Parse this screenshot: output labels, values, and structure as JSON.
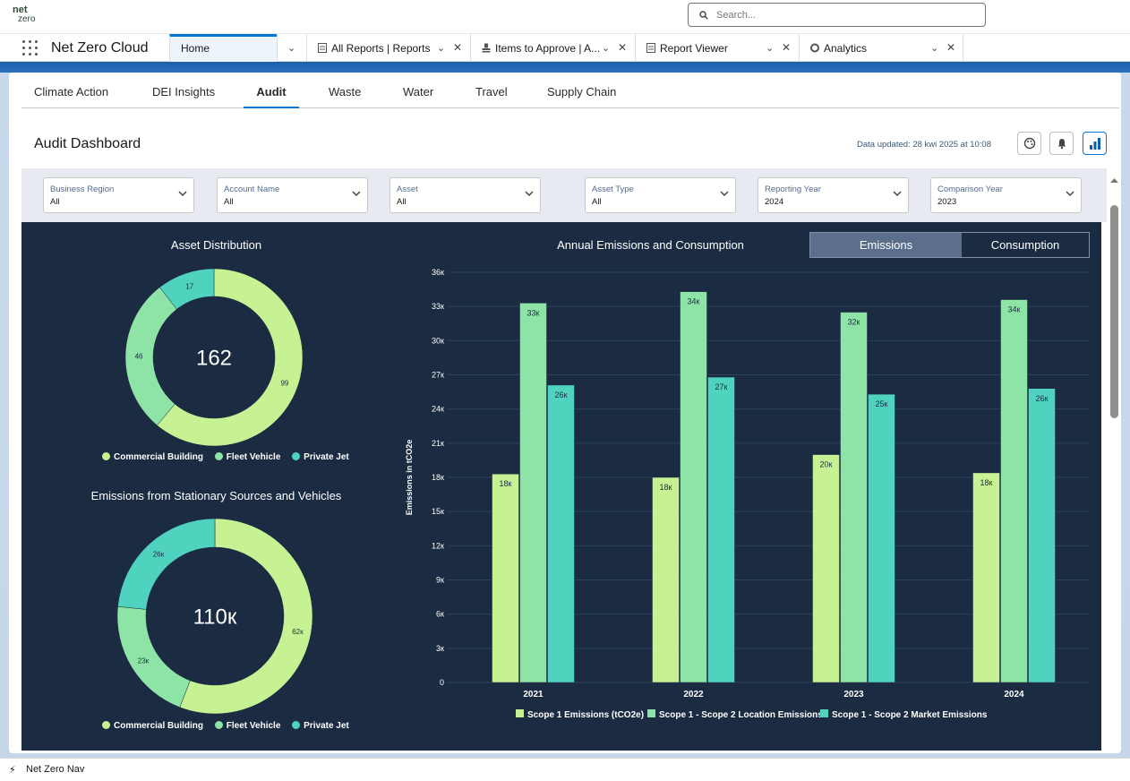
{
  "app": {
    "logo_line1": "net",
    "logo_line2": "zero",
    "search_placeholder": "Search...",
    "name": "Net Zero Cloud"
  },
  "tabs": [
    {
      "label": "Home"
    },
    {
      "label": "All Reports | Reports"
    },
    {
      "label": "Items to Approve | A..."
    },
    {
      "label": "Report Viewer"
    },
    {
      "label": "Analytics"
    }
  ],
  "dashboard_tabs": [
    "Climate Action",
    "DEI Insights",
    "Audit",
    "Waste",
    "Water",
    "Travel",
    "Supply Chain"
  ],
  "dashboard": {
    "title": "Audit Dashboard",
    "updated": "Data updated: 28 kwi 2025 at 10:08"
  },
  "filters": [
    {
      "label": "Business Region",
      "value": "All"
    },
    {
      "label": "Account Name",
      "value": "All"
    },
    {
      "label": "Asset",
      "value": "All"
    },
    {
      "label": "Asset Type",
      "value": "All"
    },
    {
      "label": "Reporting Year",
      "value": "2024"
    },
    {
      "label": "Comparison Year",
      "value": "2023"
    }
  ],
  "toggle": {
    "emissions": "Emissions",
    "consumption": "Consumption"
  },
  "colors": {
    "c1": "#c6f294",
    "c2": "#8ee3a7",
    "c3": "#4fd3bf"
  },
  "footer": {
    "label": "Net Zero Nav"
  },
  "chart_data": [
    {
      "type": "pie",
      "title": "Asset Distribution",
      "center_label": "162",
      "categories": [
        "Commercial Building",
        "Fleet Vehicle",
        "Private Jet"
      ],
      "values": [
        99,
        46,
        17
      ],
      "labels": [
        "99",
        "46",
        "17"
      ]
    },
    {
      "type": "pie",
      "title": "Emissions from Stationary Sources and Vehicles",
      "center_label": "110к",
      "categories": [
        "Commercial Building",
        "Fleet Vehicle",
        "Private Jet"
      ],
      "values": [
        62,
        23,
        26
      ],
      "labels": [
        "62к",
        "23к",
        "26к"
      ]
    },
    {
      "type": "bar",
      "title": "Annual Emissions and Consumption",
      "ylabel": "Emissions in tCO2e",
      "categories": [
        "2021",
        "2022",
        "2023",
        "2024"
      ],
      "ylim": [
        0,
        36
      ],
      "yticks": [
        "0",
        "3к",
        "6к",
        "9к",
        "12к",
        "15к",
        "18к",
        "21к",
        "24к",
        "27к",
        "30к",
        "33к",
        "36к"
      ],
      "series": [
        {
          "name": "Scope 1 Emissions (tCO2e)",
          "values": [
            18.3,
            18.0,
            20.0,
            18.4
          ],
          "labels": [
            "18к",
            "18к",
            "20к",
            "18к"
          ]
        },
        {
          "name": "Scope 1 - Scope 2 Location Emissions",
          "values": [
            33.3,
            34.3,
            32.5,
            33.6
          ],
          "labels": [
            "33к",
            "34к",
            "32к",
            "34к"
          ]
        },
        {
          "name": "Scope 1 - Scope 2 Market Emissions",
          "values": [
            26.1,
            26.8,
            25.3,
            25.8
          ],
          "labels": [
            "26к",
            "27к",
            "25к",
            "26к"
          ]
        }
      ]
    }
  ]
}
